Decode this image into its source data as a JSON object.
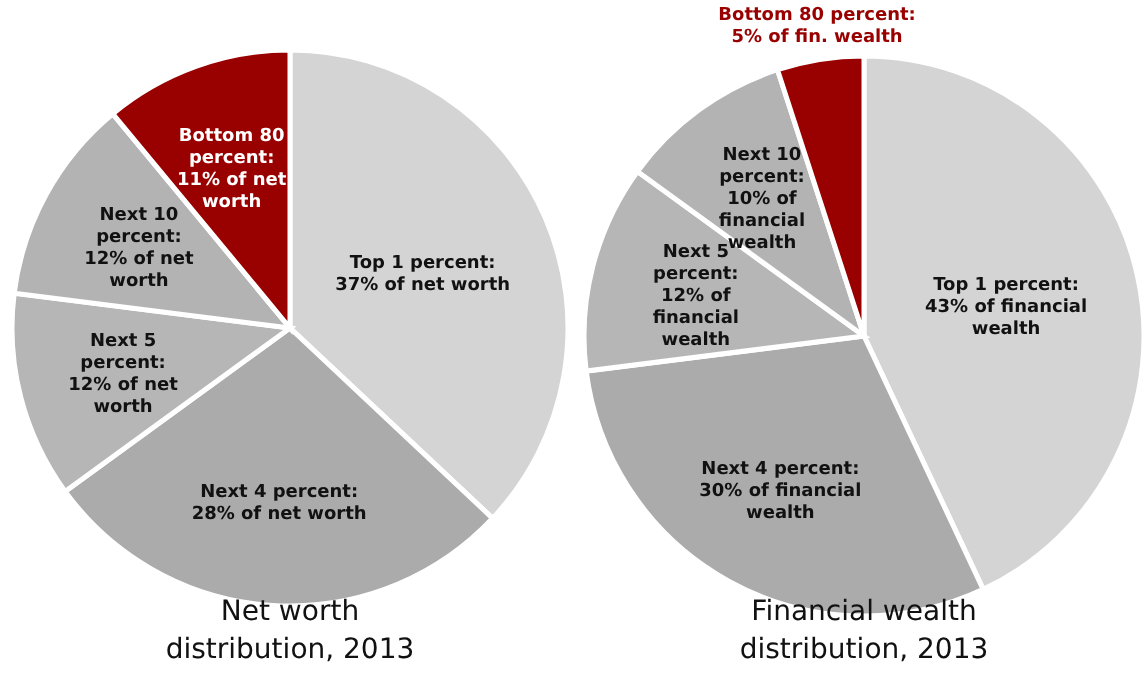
{
  "chart_data": [
    {
      "type": "pie",
      "title": "Net worth distribution, 2013",
      "categories": [
        "Top 1 percent: 37% of net worth",
        "Next 4 percent: 28% of net worth",
        "Next 5 percent: 12% of net worth",
        "Next 10 percent: 12% of net worth",
        "Bottom 80 percent: 11% of net worth"
      ],
      "values": [
        37,
        28,
        12,
        12,
        11
      ],
      "colors": [
        "#d4d4d4",
        "#ababab",
        "#b6b6b6",
        "#b3b3b3",
        "#990000"
      ]
    },
    {
      "type": "pie",
      "title": "Financial wealth distribution, 2013",
      "categories": [
        "Top 1 percent: 43% of financial wealth",
        "Next 4 percent: 30% of financial wealth",
        "Next 5 percent: 12% of financial wealth",
        "Next 10 percent: 10% of financial wealth",
        "Bottom 80 percent: 5% of fin. wealth"
      ],
      "values": [
        43,
        30,
        12,
        10,
        5
      ],
      "colors": [
        "#d4d4d4",
        "#ababab",
        "#b6b6b6",
        "#b3b3b3",
        "#990000"
      ]
    }
  ]
}
